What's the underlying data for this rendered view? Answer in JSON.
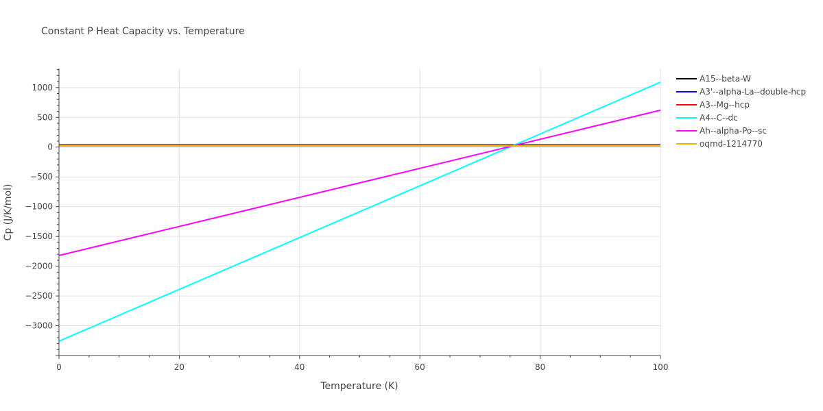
{
  "chart_data": {
    "type": "line",
    "title": "Constant P Heat Capacity vs. Temperature",
    "xlabel": "Temperature (K)",
    "ylabel": "Cp (J/K/mol)",
    "xlim": [
      0,
      100
    ],
    "ylim": [
      -3500,
      1320
    ],
    "x_ticks": [
      0,
      20,
      40,
      60,
      80,
      100
    ],
    "y_ticks": [
      -3000,
      -2500,
      -2000,
      -1500,
      -1000,
      -500,
      0,
      500,
      1000
    ],
    "grid": true,
    "legend_position": "right",
    "series": [
      {
        "name": "A15--beta-W",
        "color": "#000000",
        "x": [
          0,
          100
        ],
        "y": [
          36,
          36
        ]
      },
      {
        "name": "A3'--alpha-La--double-hcp",
        "color": "#0000ff",
        "x": [
          0,
          100
        ],
        "y": [
          32,
          32
        ]
      },
      {
        "name": "A3--Mg--hcp",
        "color": "#ff0000",
        "x": [
          0,
          100
        ],
        "y": [
          28,
          28
        ]
      },
      {
        "name": "A4--C--dc",
        "color": "#00ffff",
        "x": [
          0,
          100
        ],
        "y": [
          -3260,
          1090
        ]
      },
      {
        "name": "Ah--alpha-Po--sc",
        "color": "#ff00ff",
        "x": [
          0,
          100
        ],
        "y": [
          -1820,
          620
        ]
      },
      {
        "name": "oqmd-1214770",
        "color": "#f5b000",
        "x": [
          0,
          100
        ],
        "y": [
          20,
          20
        ]
      }
    ]
  }
}
